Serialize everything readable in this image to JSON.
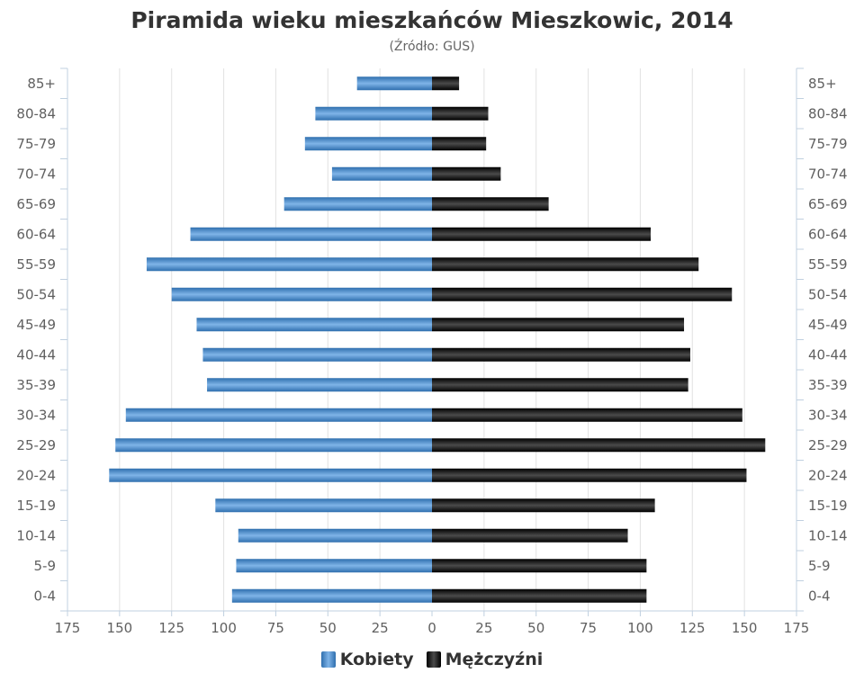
{
  "chart_data": {
    "type": "bar",
    "orientation": "horizontal-pyramid",
    "title": "Piramida wieku mieszkańców Mieszkowic, 2014",
    "subtitle": "(Źródło: GUS)",
    "categories": [
      "85+",
      "80-84",
      "75-79",
      "70-74",
      "65-69",
      "60-64",
      "55-59",
      "50-54",
      "45-49",
      "40-44",
      "35-39",
      "30-34",
      "25-29",
      "20-24",
      "15-19",
      "10-14",
      "5-9",
      "0-4"
    ],
    "xlim": [
      -175,
      175
    ],
    "xticks": [
      -175,
      -150,
      -125,
      -100,
      -75,
      -50,
      -25,
      0,
      25,
      50,
      75,
      100,
      125,
      150,
      175
    ],
    "xtick_labels": [
      "175",
      "150",
      "125",
      "100",
      "75",
      "50",
      "25",
      "0",
      "25",
      "50",
      "75",
      "100",
      "125",
      "150",
      "175"
    ],
    "grid": true,
    "legend_position": "bottom-center",
    "series": [
      {
        "name": "Kobiety",
        "side": "left",
        "color": "#4a8ccc",
        "values": [
          36,
          56,
          61,
          48,
          71,
          116,
          137,
          125,
          113,
          110,
          108,
          147,
          152,
          155,
          104,
          93,
          94,
          96
        ]
      },
      {
        "name": "Mężczyźni",
        "side": "right",
        "color": "#1a1a1a",
        "values": [
          13,
          27,
          26,
          33,
          56,
          105,
          128,
          144,
          121,
          124,
          123,
          149,
          160,
          151,
          107,
          94,
          103,
          103
        ]
      }
    ]
  }
}
